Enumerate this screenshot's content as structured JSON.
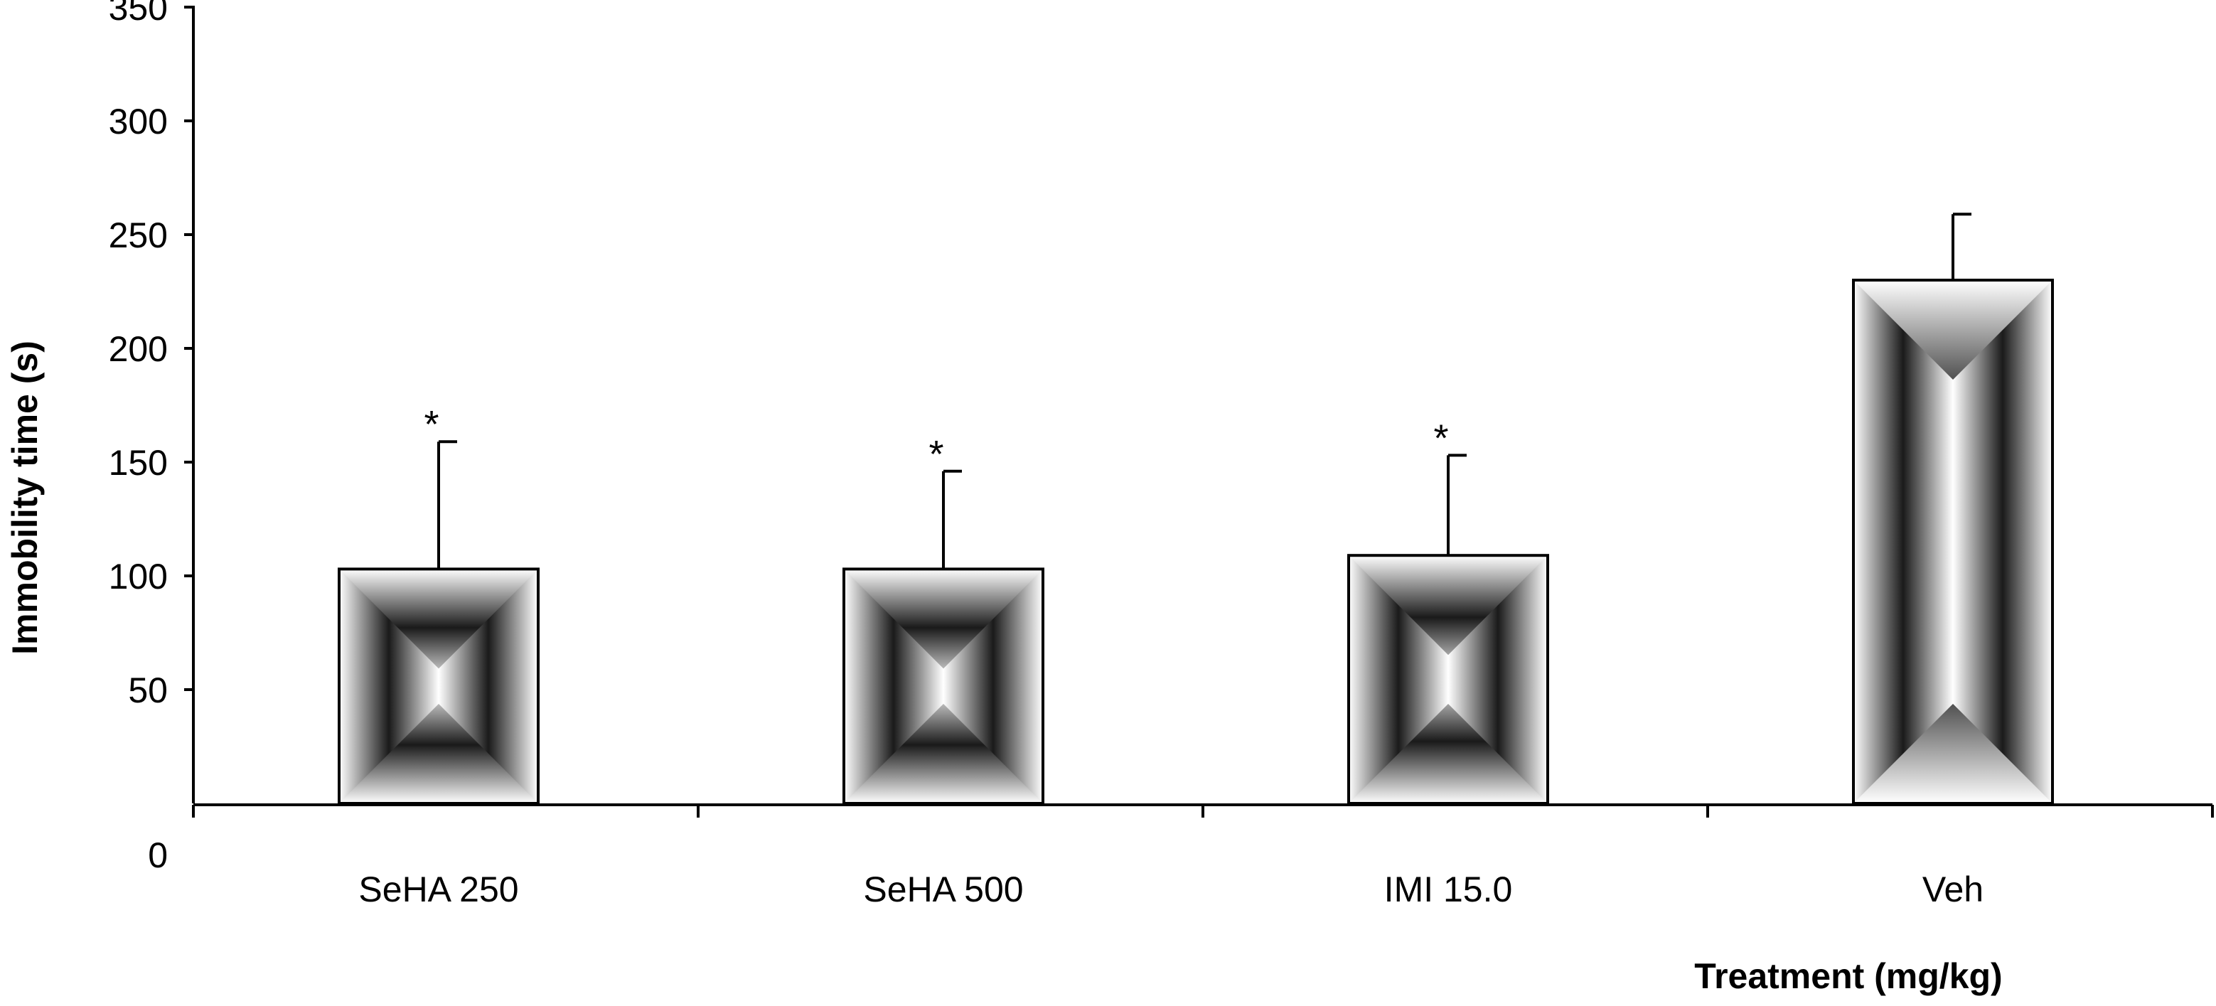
{
  "chart_data": {
    "type": "bar",
    "title": "",
    "xlabel": "Treatment (mg/kg)",
    "ylabel": "Immobility time (s)",
    "ylim": [
      0,
      350
    ],
    "yticks": [
      0,
      50,
      100,
      150,
      200,
      250,
      300,
      350
    ],
    "ytick_labels": [
      "0",
      "50",
      "100",
      "150",
      "200",
      "250",
      "300",
      "350"
    ],
    "categories": [
      "SeHA 250",
      "SeHA 500",
      "IMI 15.0",
      "Veh"
    ],
    "values": [
      103,
      103,
      109,
      230
    ],
    "errors": [
      56,
      43,
      44,
      29
    ],
    "significance": [
      "*",
      "*",
      "*",
      ""
    ],
    "grid": false,
    "legend": "none",
    "bar_fill": "radial-gray-gradient",
    "bar_stroke": "#000000"
  }
}
